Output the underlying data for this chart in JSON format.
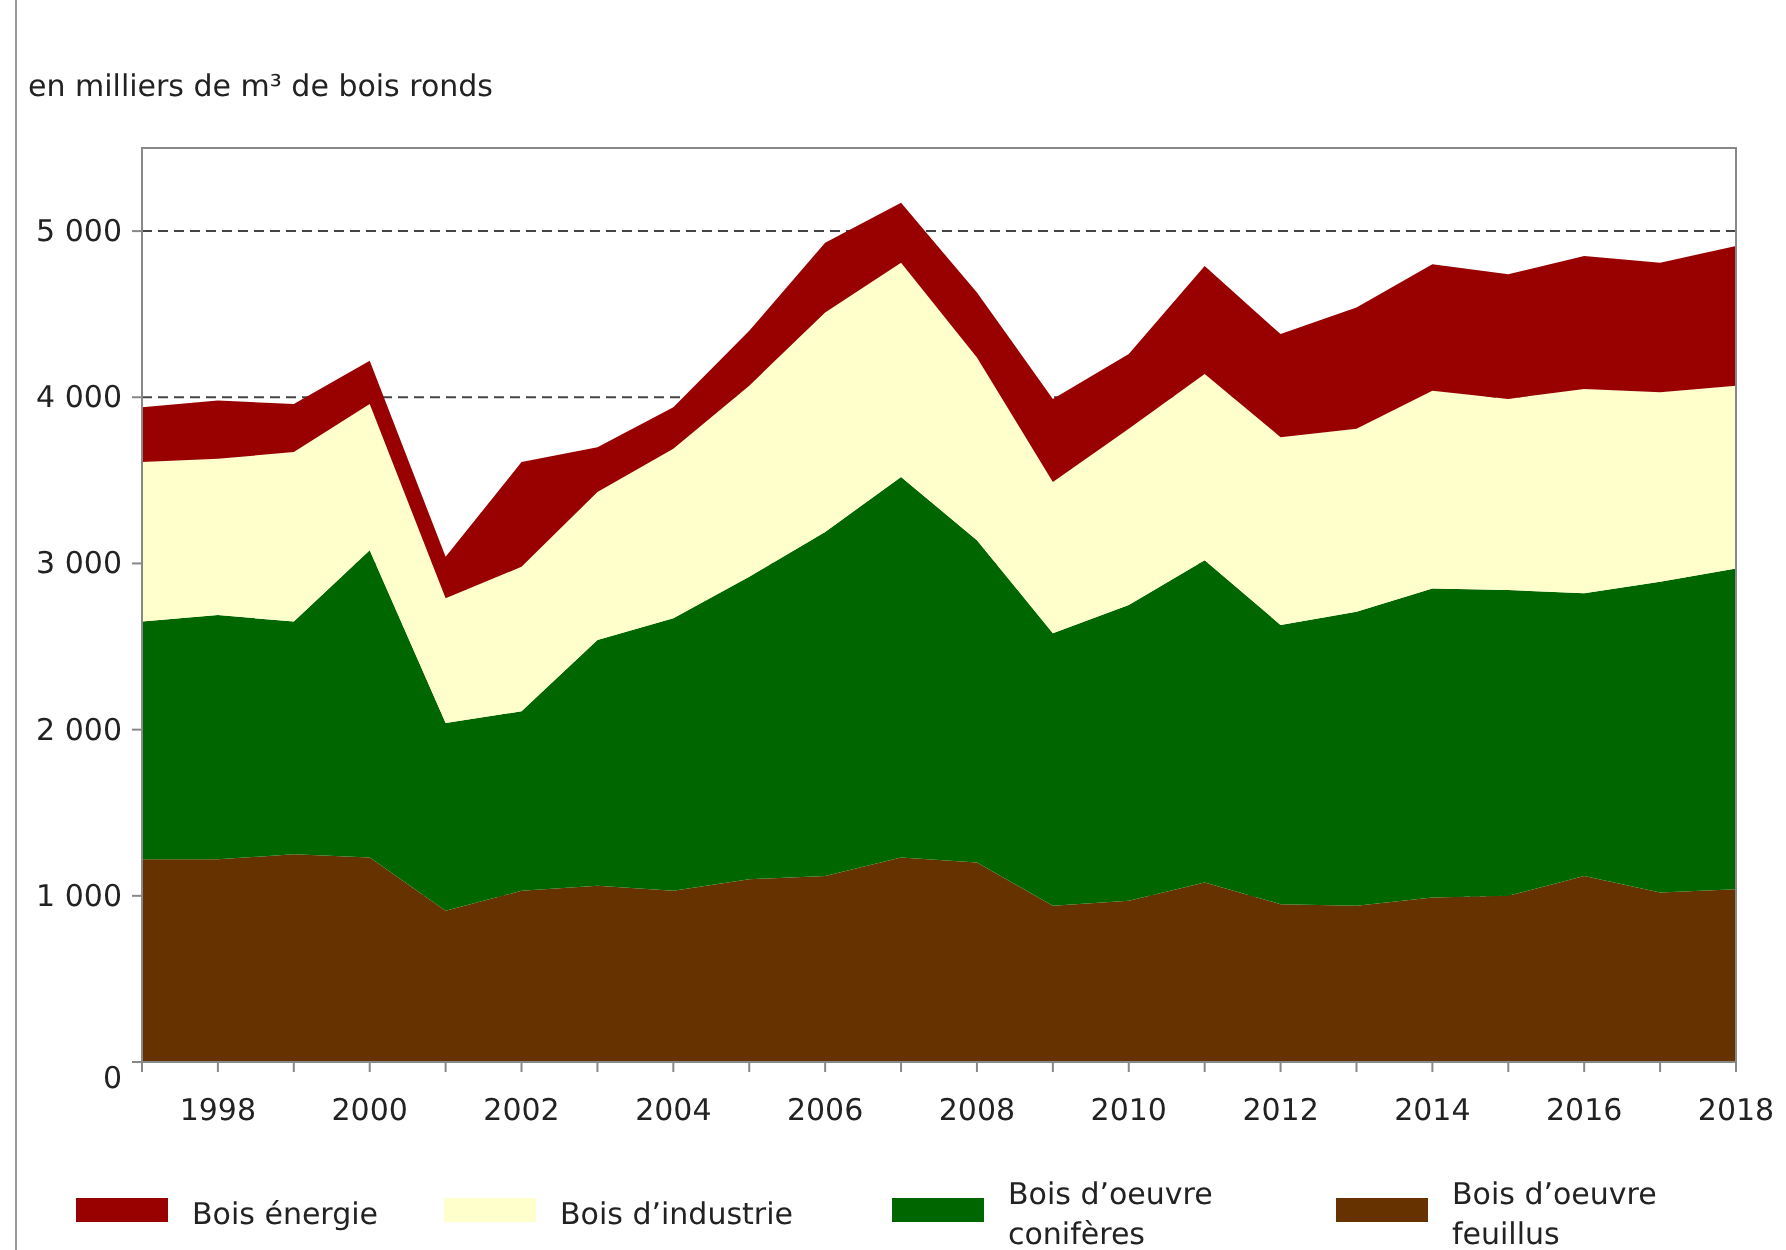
{
  "chart_data": {
    "type": "area",
    "stacked": true,
    "subtitle": "en milliers de m³ de bois ronds",
    "x": [
      1997,
      1998,
      1999,
      2000,
      2001,
      2002,
      2003,
      2004,
      2005,
      2006,
      2007,
      2008,
      2009,
      2010,
      2011,
      2012,
      2013,
      2014,
      2015,
      2016,
      2017,
      2018
    ],
    "series": [
      {
        "name": "Bois d’oeuvre feuillus",
        "color": "#663300",
        "values": [
          1220,
          1220,
          1250,
          1230,
          910,
          1030,
          1060,
          1030,
          1100,
          1120,
          1230,
          1200,
          940,
          970,
          1080,
          950,
          940,
          990,
          1000,
          1120,
          1020,
          1040
        ]
      },
      {
        "name": "Bois d’oeuvre conifères",
        "color": "#006600",
        "values": [
          1430,
          1470,
          1400,
          1850,
          1130,
          1080,
          1480,
          1640,
          1820,
          2070,
          2290,
          1940,
          1640,
          1780,
          1940,
          1680,
          1770,
          1860,
          1840,
          1700,
          1870,
          1930
        ]
      },
      {
        "name": "Bois d’industrie",
        "color": "#ffffcc",
        "values": [
          960,
          940,
          1020,
          880,
          750,
          870,
          890,
          1020,
          1150,
          1320,
          1290,
          1100,
          910,
          1060,
          1120,
          1130,
          1100,
          1190,
          1150,
          1230,
          1140,
          1100
        ]
      },
      {
        "name": "Bois énergie",
        "color": "#990000",
        "values": [
          330,
          350,
          290,
          260,
          250,
          630,
          270,
          250,
          330,
          420,
          360,
          390,
          500,
          450,
          650,
          620,
          730,
          760,
          750,
          800,
          780,
          840
        ]
      }
    ],
    "xlim": [
      1997,
      2018
    ],
    "xticks": [
      {
        "value": 1997,
        "label": null
      },
      1998,
      {
        "value": 1999,
        "label": null
      },
      2000,
      {
        "value": 2001,
        "label": null
      },
      2002,
      {
        "value": 2003,
        "label": null
      },
      2004,
      {
        "value": 2005,
        "label": null
      },
      2006,
      {
        "value": 2007,
        "label": null
      },
      2008,
      {
        "value": 2009,
        "label": null
      },
      2010,
      {
        "value": 2011,
        "label": null
      },
      2012,
      {
        "value": 2013,
        "label": null
      },
      2014,
      {
        "value": 2015,
        "label": null
      },
      2016,
      {
        "value": 2017,
        "label": null
      },
      2018
    ],
    "ylim": [
      0,
      5500
    ],
    "yticks": [
      0,
      {
        "value": 1000,
        "label": "1 000"
      },
      {
        "value": 2000,
        "label": "2 000"
      },
      {
        "value": 3000,
        "label": "3 000"
      },
      {
        "value": 4000,
        "label": "4 000"
      },
      {
        "value": 5000,
        "label": "5 000"
      }
    ],
    "grid": "y",
    "line_style": "dashed",
    "legend": "bottom"
  }
}
